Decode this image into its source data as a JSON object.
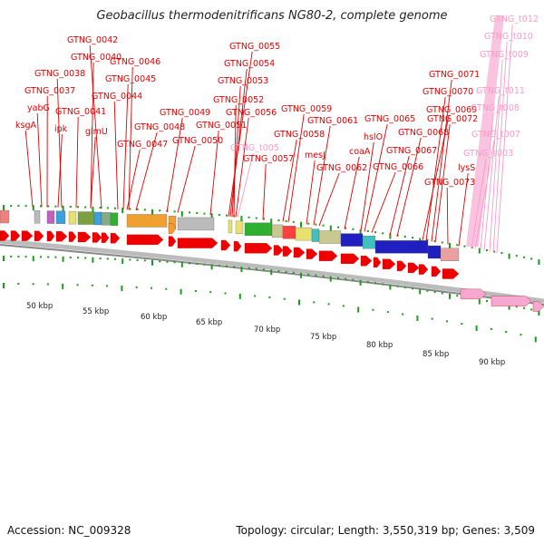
{
  "title": "Geobacillus thermodenitrificans NG80-2, complete genome",
  "colors": {
    "gene_label": "#e00000",
    "rna_label": "#f79ac6",
    "gene_arrow": "#ee0000",
    "rna_arrow": "#f7a8d0",
    "tick": "#1a9c1a",
    "backbone": "#999999"
  },
  "gene_labels": [
    {
      "text": "GTNG_0042",
      "kind": "gene"
    },
    {
      "text": "GTNG_0040",
      "kind": "gene"
    },
    {
      "text": "GTNG_0038",
      "kind": "gene"
    },
    {
      "text": "GTNG_0037",
      "kind": "gene"
    },
    {
      "text": "yabG",
      "kind": "gene"
    },
    {
      "text": "ksgA",
      "kind": "gene"
    },
    {
      "text": "ipk",
      "kind": "gene"
    },
    {
      "text": "GTNG_0041",
      "kind": "gene"
    },
    {
      "text": "glmU",
      "kind": "gene"
    },
    {
      "text": "GTNG_0046",
      "kind": "gene"
    },
    {
      "text": "GTNG_0045",
      "kind": "gene"
    },
    {
      "text": "GTNG_0044",
      "kind": "gene"
    },
    {
      "text": "GTNG_0048",
      "kind": "gene"
    },
    {
      "text": "GTNG_0047",
      "kind": "gene"
    },
    {
      "text": "GTNG_0049",
      "kind": "gene"
    },
    {
      "text": "GTNG_0050",
      "kind": "gene"
    },
    {
      "text": "GTNG_0055",
      "kind": "gene"
    },
    {
      "text": "GTNG_0054",
      "kind": "gene"
    },
    {
      "text": "GTNG_0053",
      "kind": "gene"
    },
    {
      "text": "GTNG_0052",
      "kind": "gene"
    },
    {
      "text": "GTNG_0051",
      "kind": "gene"
    },
    {
      "text": "GTNG_0056",
      "kind": "gene"
    },
    {
      "text": "GTNG_t005",
      "kind": "rna"
    },
    {
      "text": "GTNG_0057",
      "kind": "gene"
    },
    {
      "text": "GTNG_0059",
      "kind": "gene"
    },
    {
      "text": "GTNG_0058",
      "kind": "gene"
    },
    {
      "text": "GTNG_0061",
      "kind": "gene"
    },
    {
      "text": "mesJ",
      "kind": "gene"
    },
    {
      "text": "GTNG_0062",
      "kind": "gene"
    },
    {
      "text": "GTNG_0065",
      "kind": "gene"
    },
    {
      "text": "hslO",
      "kind": "gene"
    },
    {
      "text": "coaA",
      "kind": "gene"
    },
    {
      "text": "GTNG_0066",
      "kind": "gene"
    },
    {
      "text": "GTNG_0068",
      "kind": "gene"
    },
    {
      "text": "GTNG_0067",
      "kind": "gene"
    },
    {
      "text": "GTNG_0071",
      "kind": "gene"
    },
    {
      "text": "GTNG_0070",
      "kind": "gene"
    },
    {
      "text": "GTNG_0069",
      "kind": "gene"
    },
    {
      "text": "GTNG_0072",
      "kind": "gene"
    },
    {
      "text": "GTNG_0073",
      "kind": "gene"
    },
    {
      "text": "lysS",
      "kind": "gene"
    },
    {
      "text": "GTNG_t012",
      "kind": "rna"
    },
    {
      "text": "GTNG_t010",
      "kind": "rna"
    },
    {
      "text": "GTNG_t009",
      "kind": "rna"
    },
    {
      "text": "GTNG_t011",
      "kind": "rna"
    },
    {
      "text": "GTNG_t008",
      "kind": "rna"
    },
    {
      "text": "GTNG_t007",
      "kind": "rna"
    },
    {
      "text": "GTNG_s003",
      "kind": "rna"
    }
  ],
  "scale_labels": [
    "50 kbp",
    "55 kbp",
    "60 kbp",
    "65 kbp",
    "70 kbp",
    "75 kbp",
    "80 kbp",
    "85 kbp",
    "90 kbp"
  ],
  "footer": {
    "accession": "Accession: NC_009328",
    "summary": "Topology: circular; Length: 3,550,319 bp; Genes: 3,509"
  }
}
